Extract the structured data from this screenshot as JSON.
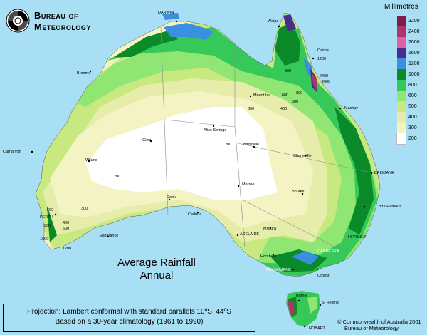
{
  "agency": {
    "line1": "Bureau of",
    "line2": "Meteorology"
  },
  "map_title": {
    "line1": "Average Rainfall",
    "line2": "Annual"
  },
  "legend": {
    "title": "Millimetres",
    "classes": [
      {
        "label": "3200",
        "color": "#7a1f4a"
      },
      {
        "label": "2400",
        "color": "#b2336b"
      },
      {
        "label": "2000",
        "color": "#e060a8"
      },
      {
        "label": "1600",
        "color": "#4b2c8c"
      },
      {
        "label": "1200",
        "color": "#3b8fe0"
      },
      {
        "label": "1000",
        "color": "#0b8a2a"
      },
      {
        "label": "800",
        "color": "#36c95a"
      },
      {
        "label": "600",
        "color": "#8fe673"
      },
      {
        "label": "500",
        "color": "#c8e880"
      },
      {
        "label": "400",
        "color": "#e6edaa"
      },
      {
        "label": "300",
        "color": "#f4f3c4"
      },
      {
        "label": "200",
        "color": "#ffffff"
      }
    ]
  },
  "projection_text": "Projection: Lambert conformal with standard parallels 10ºS, 44ºS",
  "climatology_text": "Based on a 30-year climatology (1961 to 1990)",
  "copyright": {
    "line1": "© Commonwealth of Australia 2001",
    "line2": "Bureau of Meteorology"
  },
  "places": {
    "darwin": "DARWIN",
    "weipa": "Weipa",
    "cairns": "Cairns",
    "broome": "Broome",
    "mount_isa": "Mount Isa",
    "mackay": "Mackay",
    "giles": "Giles",
    "alice_springs": "Alice Springs",
    "birdsville": "Birdsville",
    "carnarvon": "Carnarvon",
    "wiluna": "Wiluna",
    "charleville": "Charleville",
    "brisbane": "BRISBANE",
    "marree": "Marree",
    "bourke": "Bourke",
    "coffs_harbour": "Coff's Harbour",
    "cook": "Cook",
    "ceduna": "Ceduna",
    "perth": "PERTH",
    "esperance": "Esperance",
    "mildura": "Mildura",
    "adelaide": "ADELAIDE",
    "sydney": "SYDNEY",
    "canberra": "CANBERRA",
    "horsham": "Horsham",
    "melbourne": "MELBOURNE",
    "orbost": "Orbost",
    "burnie": "Burnie",
    "st_helens": "St Helens",
    "hobart": "HOBART"
  },
  "isohyets": {
    "i800_north": "800",
    "i1200_cairns": "1200",
    "i2400_cairns": "2400",
    "i2000_cairns": "2000",
    "i800_qld": "800",
    "i600_qld": "600",
    "i500_qld": "500",
    "i400_qld": "400",
    "i300_nt": "300",
    "i200_nt": "200",
    "i200_centre": "200",
    "i300_wa": "300",
    "i600_sw": "600",
    "i800_sw": "800",
    "i1000_sw": "1000",
    "i400_sw": "400",
    "i500_sw": "500",
    "i1200_sw": "1200"
  }
}
